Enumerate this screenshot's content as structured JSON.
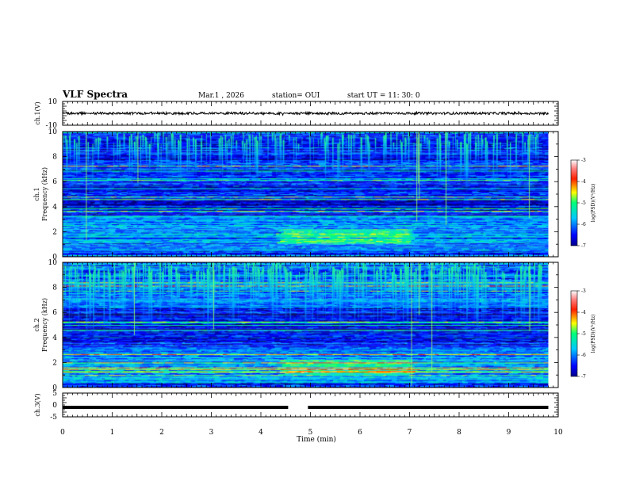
{
  "header": {
    "title": "VLF Spectra",
    "date": "Mar.1 , 2026",
    "station": "station= OUI",
    "start": "start UT = 11: 30: 0"
  },
  "chart_data": [
    {
      "name": "ch1-waveform",
      "type": "line",
      "ylabel": "ch.1(V)",
      "ylim": [
        -10,
        10
      ],
      "ytick_labels": [
        "10",
        "-10"
      ],
      "xlim": [
        0,
        10
      ],
      "baseline": 0,
      "noise_amplitude": 1.0,
      "data_end_min": 9.8
    },
    {
      "name": "ch1-spectrogram",
      "type": "heatmap",
      "ylabel_top": "ch.1",
      "ylabel": "Frequency (kHz)",
      "ylim": [
        0,
        10
      ],
      "ytick_labels": [
        "0",
        "2",
        "4",
        "6",
        "8",
        "10"
      ],
      "xlim": [
        0,
        10
      ],
      "data_end_min": 9.8,
      "colorbar": {
        "label": "log(PSD)(V²/Hz)",
        "range": [
          -7,
          -3
        ],
        "tick_labels": [
          "-3",
          "-4",
          "-5",
          "-6",
          "-7"
        ]
      }
    },
    {
      "name": "ch2-spectrogram",
      "type": "heatmap",
      "ylabel_top": "ch.2",
      "ylabel": "Frequency (kHz)",
      "ylim": [
        0,
        10
      ],
      "ytick_labels": [
        "0",
        "2",
        "4",
        "6",
        "8",
        "10"
      ],
      "xlim": [
        0,
        10
      ],
      "data_end_min": 9.8,
      "colorbar": {
        "label": "log(PSD)(V²/Hz)",
        "range": [
          -7,
          -3
        ],
        "tick_labels": [
          "-3",
          "-4",
          "-5",
          "-6",
          "-7"
        ]
      }
    },
    {
      "name": "ch3-waveform",
      "type": "line",
      "ylabel": "ch.3(V)",
      "ylim": [
        -5,
        5
      ],
      "ytick_labels": [
        "5",
        "0",
        "-5"
      ],
      "xlim": [
        0,
        10
      ],
      "baseline": -1,
      "gap_min": [
        4.55,
        4.95
      ],
      "data_end_min": 9.8
    }
  ],
  "xaxis": {
    "label": "Time (min)",
    "tick_labels": [
      "0",
      "1",
      "2",
      "3",
      "4",
      "5",
      "6",
      "7",
      "8",
      "9",
      "10"
    ]
  }
}
